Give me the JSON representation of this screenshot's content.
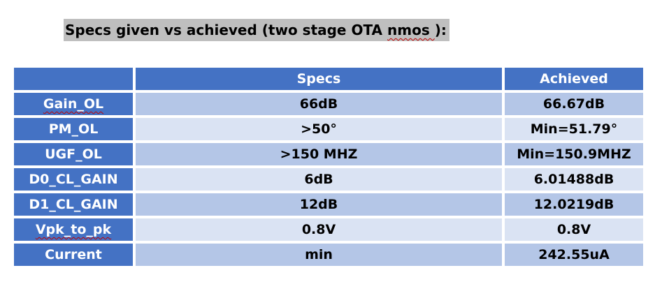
{
  "heading": {
    "prefix": "Specs given vs achieved (two stage OTA ",
    "squiggle": "nmos ",
    "suffix": "):"
  },
  "table": {
    "columns": [
      "",
      "Specs",
      "Achieved"
    ],
    "rows": [
      {
        "label": "Gain_OL",
        "spec": "66dB",
        "achieved": "66.67dB"
      },
      {
        "label": "PM_OL",
        "spec": ">50°",
        "achieved": "Min=51.79°"
      },
      {
        "label": "UGF_OL",
        "spec": ">150 MHZ",
        "achieved": "Min=150.9MHZ"
      },
      {
        "label": "D0_CL_GAIN",
        "spec": "6dB",
        "achieved": "6.01488dB"
      },
      {
        "label": "D1_CL_GAIN",
        "spec": "12dB",
        "achieved": "12.0219dB"
      },
      {
        "label": "Vpk_to_pk",
        "spec": "0.8V",
        "achieved": "0.8V"
      },
      {
        "label": "Current",
        "spec": "min",
        "achieved": "242.55uA"
      }
    ]
  },
  "colors": {
    "header": "#4472c4",
    "row_dark": "#b4c6e7",
    "row_light": "#dae3f3",
    "heading_highlight": "#bfbfbf"
  }
}
